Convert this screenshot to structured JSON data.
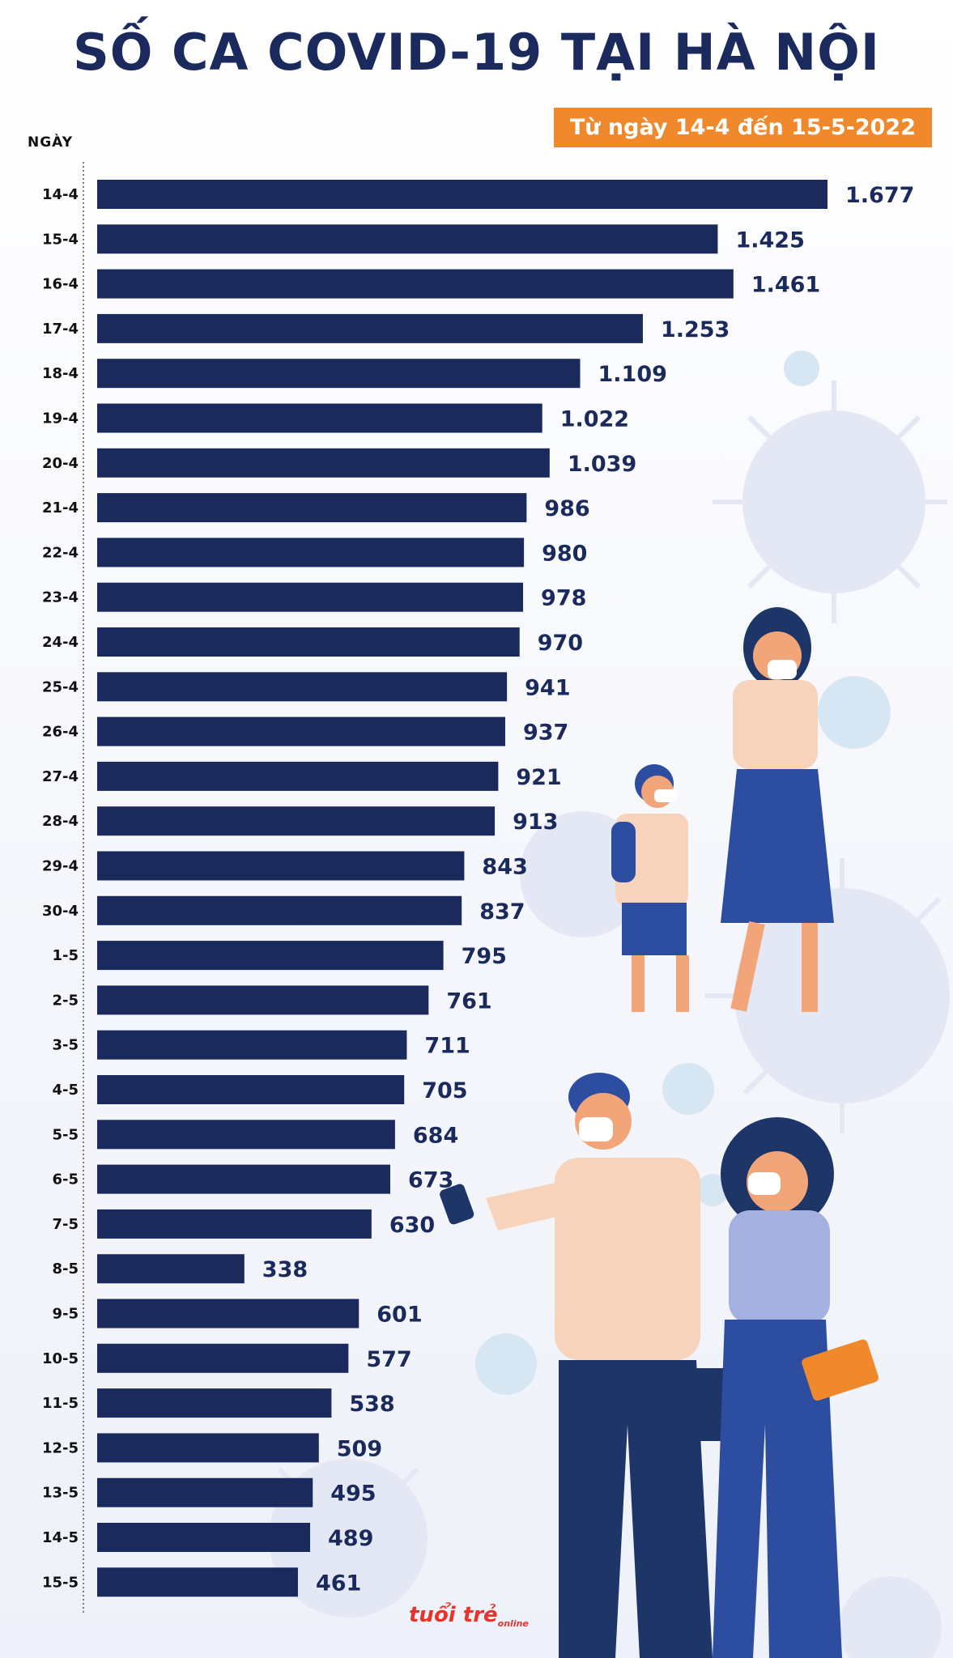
{
  "title": "SỐ CA COVID-19 TẠI HÀ NỘI",
  "subtitle": "Từ ngày 14-4 đến 15-5-2022",
  "category_axis_label": "NGÀY",
  "logo": {
    "name": "tuoi tre online",
    "text": "tuổi trẻ",
    "small": "online"
  },
  "colors": {
    "bar": "#1b2a5c",
    "label": "#1b2a5c",
    "accent": "#f0892b"
  },
  "chart_data": {
    "type": "bar",
    "orientation": "horizontal",
    "title": "SỐ CA COVID-19 TẠI HÀ NỘI",
    "subtitle": "Từ ngày 14-4 đến 15-5-2022",
    "xlabel": "",
    "ylabel": "NGÀY",
    "grid": false,
    "legend": "none",
    "xlim": [
      0,
      1677
    ],
    "categories": [
      "14-4",
      "15-4",
      "16-4",
      "17-4",
      "18-4",
      "19-4",
      "20-4",
      "21-4",
      "22-4",
      "23-4",
      "24-4",
      "25-4",
      "26-4",
      "27-4",
      "28-4",
      "29-4",
      "30-4",
      "1-5",
      "2-5",
      "3-5",
      "4-5",
      "5-5",
      "6-5",
      "7-5",
      "8-5",
      "9-5",
      "10-5",
      "11-5",
      "12-5",
      "13-5",
      "14-5",
      "15-5"
    ],
    "values": [
      1677,
      1425,
      1461,
      1253,
      1109,
      1022,
      1039,
      986,
      980,
      978,
      970,
      941,
      937,
      921,
      913,
      843,
      837,
      795,
      761,
      711,
      705,
      684,
      673,
      630,
      338,
      601,
      577,
      538,
      509,
      495,
      489,
      461
    ],
    "value_labels": [
      "1.677",
      "1.425",
      "1.461",
      "1.253",
      "1.109",
      "1.022",
      "1.039",
      "986",
      "980",
      "978",
      "970",
      "941",
      "937",
      "921",
      "913",
      "843",
      "837",
      "795",
      "761",
      "711",
      "705",
      "684",
      "673",
      "630",
      "338",
      "601",
      "577",
      "538",
      "509",
      "495",
      "489",
      "461"
    ]
  }
}
